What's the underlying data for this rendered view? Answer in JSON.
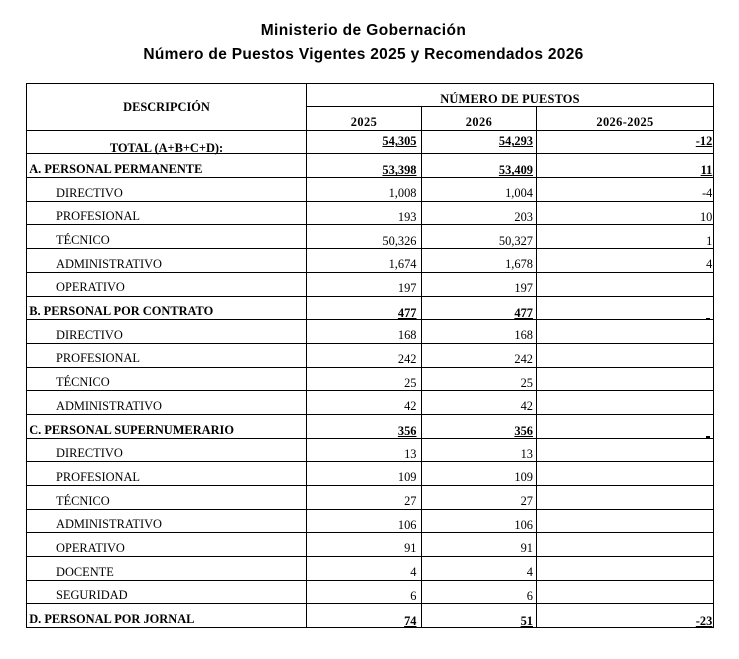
{
  "title": {
    "line1": "Ministerio de Gobernación",
    "line2": "Número de Puestos Vigentes 2025 y Recomendados 2026"
  },
  "table": {
    "header": {
      "description": "DESCRIPCIÓN",
      "group": "NÚMERO DE PUESTOS",
      "col_2025": "2025",
      "col_2026": "2026",
      "col_diff": "2026-2025"
    },
    "rows": [
      {
        "label": "TOTAL (A+B+C+D):",
        "y2025": "54,305",
        "y2026": "54,293",
        "diff": "-12",
        "type": "total"
      },
      {
        "label": "A. PERSONAL PERMANENTE",
        "y2025": "53,398",
        "y2026": "53,409",
        "diff": "11",
        "type": "section"
      },
      {
        "label": "DIRECTIVO",
        "y2025": "1,008",
        "y2026": "1,004",
        "diff": "-4",
        "type": "item"
      },
      {
        "label": "PROFESIONAL",
        "y2025": "193",
        "y2026": "203",
        "diff": "10",
        "type": "item"
      },
      {
        "label": "TÉCNICO",
        "y2025": "50,326",
        "y2026": "50,327",
        "diff": "1",
        "type": "item"
      },
      {
        "label": "ADMINISTRATIVO",
        "y2025": "1,674",
        "y2026": "1,678",
        "diff": "4",
        "type": "item"
      },
      {
        "label": "OPERATIVO",
        "y2025": "197",
        "y2026": "197",
        "diff": "",
        "type": "item"
      },
      {
        "label": "B. PERSONAL POR CONTRATO",
        "y2025": "477",
        "y2026": "477",
        "diff": "",
        "diff_mark": true,
        "type": "section"
      },
      {
        "label": "DIRECTIVO",
        "y2025": "168",
        "y2026": "168",
        "diff": "",
        "type": "item"
      },
      {
        "label": "PROFESIONAL",
        "y2025": "242",
        "y2026": "242",
        "diff": "",
        "type": "item"
      },
      {
        "label": "TÉCNICO",
        "y2025": "25",
        "y2026": "25",
        "diff": "",
        "type": "item"
      },
      {
        "label": "ADMINISTRATIVO",
        "y2025": "42",
        "y2026": "42",
        "diff": "",
        "type": "item"
      },
      {
        "label": "C. PERSONAL SUPERNUMERARIO",
        "y2025": "356",
        "y2026": "356",
        "diff": "",
        "diff_mark": true,
        "type": "section"
      },
      {
        "label": "DIRECTIVO",
        "y2025": "13",
        "y2026": "13",
        "diff": "",
        "type": "item"
      },
      {
        "label": "PROFESIONAL",
        "y2025": "109",
        "y2026": "109",
        "diff": "",
        "type": "item"
      },
      {
        "label": "TÉCNICO",
        "y2025": "27",
        "y2026": "27",
        "diff": "",
        "type": "item"
      },
      {
        "label": "ADMINISTRATIVO",
        "y2025": "106",
        "y2026": "106",
        "diff": "",
        "type": "item"
      },
      {
        "label": "OPERATIVO",
        "y2025": "91",
        "y2026": "91",
        "diff": "",
        "type": "item"
      },
      {
        "label": "DOCENTE",
        "y2025": "4",
        "y2026": "4",
        "diff": "",
        "type": "item"
      },
      {
        "label": "SEGURIDAD",
        "y2025": "6",
        "y2026": "6",
        "diff": "",
        "type": "item"
      },
      {
        "label": "D. PERSONAL POR JORNAL",
        "y2025": "74",
        "y2026": "51",
        "diff": "-23",
        "type": "section"
      }
    ]
  },
  "colors": {
    "text": "#000000",
    "border": "#000000",
    "background": "#ffffff"
  }
}
